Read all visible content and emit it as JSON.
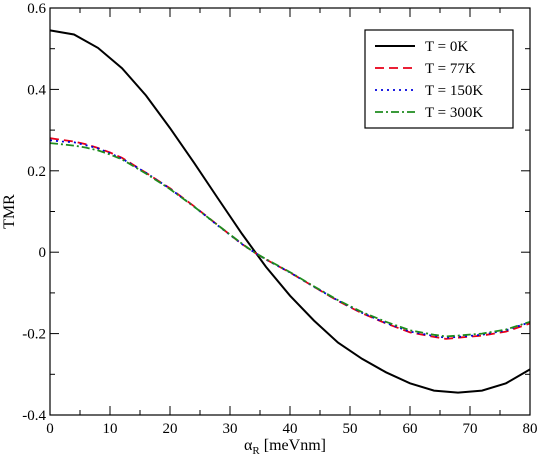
{
  "chart_data": {
    "type": "line",
    "title": "",
    "xlabel_main": "α",
    "xlabel_sub": "R",
    "xlabel_unit": " [meVnm]",
    "ylabel": "TMR",
    "xlim": [
      0,
      80
    ],
    "ylim": [
      -0.4,
      0.6
    ],
    "xticks": [
      0,
      10,
      20,
      30,
      40,
      50,
      60,
      70,
      80
    ],
    "yticks": [
      -0.4,
      -0.2,
      0,
      0.2,
      0.4,
      0.6
    ],
    "ytick_labels": [
      "-0.4",
      "-0.2",
      "0",
      "0.2",
      "0.4",
      "0.6"
    ],
    "grid": false,
    "legend_position": "top-right",
    "series": [
      {
        "name": "T = 0K",
        "color": "#000000",
        "dash": "solid",
        "x": [
          0,
          4,
          8,
          12,
          16,
          20,
          24,
          28,
          32,
          36,
          40,
          44,
          48,
          52,
          56,
          60,
          64,
          68,
          72,
          76,
          80
        ],
        "y": [
          0.545,
          0.535,
          0.502,
          0.452,
          0.385,
          0.305,
          0.22,
          0.132,
          0.045,
          -0.036,
          -0.107,
          -0.168,
          -0.222,
          -0.262,
          -0.295,
          -0.322,
          -0.34,
          -0.345,
          -0.34,
          -0.322,
          -0.288
        ]
      },
      {
        "name": "T = 77K",
        "color": "#e8001a",
        "dash": "dashed",
        "x": [
          0,
          2,
          4,
          6,
          8,
          10,
          12,
          16,
          20,
          24,
          28,
          32,
          34,
          36,
          40,
          44,
          48,
          52,
          56,
          60,
          64,
          66,
          68,
          72,
          76,
          80
        ],
        "y": [
          0.28,
          0.276,
          0.272,
          0.265,
          0.256,
          0.245,
          0.232,
          0.195,
          0.157,
          0.113,
          0.066,
          0.02,
          0.0,
          -0.018,
          -0.05,
          -0.085,
          -0.12,
          -0.15,
          -0.175,
          -0.197,
          -0.208,
          -0.213,
          -0.21,
          -0.205,
          -0.195,
          -0.175
        ]
      },
      {
        "name": "T = 150K",
        "color": "#0000dd",
        "dash": "dotted",
        "x": [
          0,
          2,
          4,
          6,
          8,
          10,
          12,
          16,
          20,
          24,
          28,
          32,
          34,
          36,
          40,
          44,
          48,
          52,
          56,
          60,
          64,
          66,
          68,
          72,
          76,
          80
        ],
        "y": [
          0.275,
          0.272,
          0.27,
          0.263,
          0.255,
          0.243,
          0.23,
          0.195,
          0.156,
          0.112,
          0.065,
          0.02,
          0.0,
          -0.018,
          -0.05,
          -0.085,
          -0.119,
          -0.149,
          -0.174,
          -0.195,
          -0.206,
          -0.21,
          -0.208,
          -0.203,
          -0.192,
          -0.172
        ]
      },
      {
        "name": "T = 300K",
        "color": "#1e8c1e",
        "dash": "dashdot",
        "x": [
          0,
          2,
          4,
          6,
          8,
          10,
          12,
          16,
          20,
          24,
          28,
          32,
          34,
          36,
          40,
          44,
          48,
          52,
          56,
          60,
          64,
          66,
          68,
          72,
          76,
          80
        ],
        "y": [
          0.268,
          0.265,
          0.262,
          0.257,
          0.25,
          0.24,
          0.228,
          0.193,
          0.155,
          0.112,
          0.066,
          0.021,
          0.0,
          -0.017,
          -0.049,
          -0.084,
          -0.118,
          -0.147,
          -0.171,
          -0.192,
          -0.203,
          -0.207,
          -0.205,
          -0.2,
          -0.19,
          -0.171
        ]
      }
    ]
  }
}
